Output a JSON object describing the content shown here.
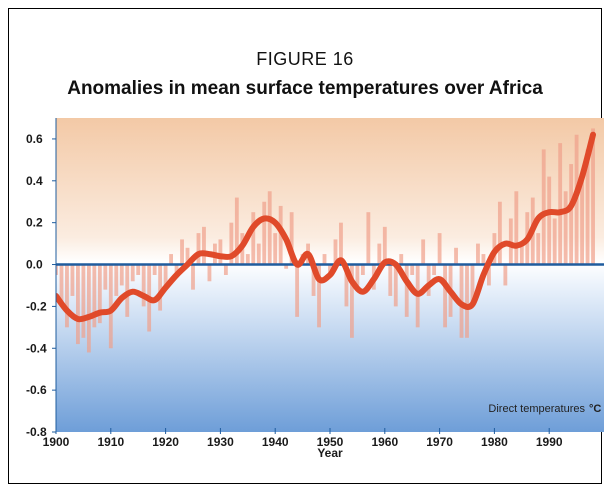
{
  "figure_label": "FIGURE 16",
  "chart_data": {
    "type": "line",
    "title": "Anomalies in mean surface temperatures over Africa",
    "xlabel": "Year",
    "ylabel": "",
    "xlim": [
      1900,
      2000
    ],
    "ylim": [
      -0.8,
      0.7
    ],
    "x_ticks": [
      "1900",
      "1910",
      "1920",
      "1930",
      "1940",
      "1950",
      "1960",
      "1970",
      "1980",
      "1990"
    ],
    "y_ticks": [
      "0.6",
      "0.4",
      "0.2",
      "0.0",
      "-0.2",
      "-0.4",
      "-0.6",
      "-0.8"
    ],
    "reference_line": 0.0,
    "annotation": "Direct temperatures",
    "unit": "°C",
    "grid": false,
    "colors": {
      "smoothed": "#e04a2a",
      "annual": "#f0a08a",
      "zero_line": "#1f5c9e",
      "bg_top": "#f3c9a6",
      "bg_bottom": "#6e9ed8"
    },
    "series": [
      {
        "style": "smoothed-curve",
        "x": [
          1900,
          1902,
          1904,
          1906,
          1908,
          1910,
          1912,
          1914,
          1916,
          1918,
          1920,
          1922,
          1924,
          1926,
          1928,
          1930,
          1932,
          1934,
          1936,
          1938,
          1940,
          1942,
          1944,
          1946,
          1948,
          1950,
          1952,
          1954,
          1956,
          1958,
          1960,
          1962,
          1964,
          1966,
          1968,
          1970,
          1972,
          1974,
          1976,
          1978,
          1980,
          1982,
          1984,
          1986,
          1988,
          1990,
          1992,
          1994,
          1996,
          1998
        ],
        "y": [
          -0.15,
          -0.22,
          -0.26,
          -0.25,
          -0.23,
          -0.22,
          -0.16,
          -0.13,
          -0.15,
          -0.17,
          -0.11,
          -0.05,
          0.0,
          0.05,
          0.05,
          0.04,
          0.04,
          0.09,
          0.18,
          0.22,
          0.2,
          0.12,
          0.0,
          0.05,
          -0.07,
          -0.05,
          0.02,
          -0.08,
          -0.13,
          -0.07,
          0.01,
          0.0,
          -0.08,
          -0.14,
          -0.1,
          -0.07,
          -0.13,
          -0.19,
          -0.19,
          -0.05,
          0.06,
          0.1,
          0.09,
          0.12,
          0.22,
          0.25,
          0.25,
          0.28,
          0.42,
          0.62
        ]
      },
      {
        "style": "annual-bars",
        "x": [
          1900,
          1901,
          1902,
          1903,
          1904,
          1905,
          1906,
          1907,
          1908,
          1909,
          1910,
          1911,
          1912,
          1913,
          1914,
          1915,
          1916,
          1917,
          1918,
          1919,
          1920,
          1921,
          1922,
          1923,
          1924,
          1925,
          1926,
          1927,
          1928,
          1929,
          1930,
          1931,
          1932,
          1933,
          1934,
          1935,
          1936,
          1937,
          1938,
          1939,
          1940,
          1941,
          1942,
          1943,
          1944,
          1945,
          1946,
          1947,
          1948,
          1949,
          1950,
          1951,
          1952,
          1953,
          1954,
          1955,
          1956,
          1957,
          1958,
          1959,
          1960,
          1961,
          1962,
          1963,
          1964,
          1965,
          1966,
          1967,
          1968,
          1969,
          1970,
          1971,
          1972,
          1973,
          1974,
          1975,
          1976,
          1977,
          1978,
          1979,
          1980,
          1981,
          1982,
          1983,
          1984,
          1985,
          1986,
          1987,
          1988,
          1989,
          1990,
          1991,
          1992,
          1993,
          1994,
          1995,
          1996,
          1997,
          1998
        ],
        "y": [
          -0.05,
          -0.2,
          -0.3,
          -0.15,
          -0.38,
          -0.35,
          -0.42,
          -0.3,
          -0.28,
          -0.12,
          -0.4,
          -0.15,
          -0.1,
          -0.25,
          -0.08,
          -0.05,
          -0.2,
          -0.32,
          -0.05,
          -0.22,
          -0.1,
          0.05,
          -0.05,
          0.12,
          0.08,
          -0.12,
          0.15,
          0.18,
          -0.08,
          0.1,
          0.12,
          -0.05,
          0.2,
          0.32,
          0.15,
          0.05,
          0.25,
          0.1,
          0.3,
          0.35,
          0.15,
          0.28,
          -0.02,
          0.25,
          -0.25,
          0.05,
          0.1,
          -0.15,
          -0.3,
          0.05,
          -0.05,
          0.12,
          0.2,
          -0.2,
          -0.35,
          -0.1,
          -0.05,
          0.25,
          -0.12,
          0.1,
          0.18,
          -0.15,
          -0.2,
          0.05,
          -0.25,
          -0.05,
          -0.3,
          0.12,
          -0.15,
          -0.05,
          0.15,
          -0.3,
          -0.25,
          0.08,
          -0.35,
          -0.35,
          -0.2,
          0.1,
          0.05,
          -0.1,
          0.15,
          0.3,
          -0.1,
          0.22,
          0.35,
          0.1,
          0.25,
          0.32,
          0.15,
          0.55,
          0.42,
          0.22,
          0.58,
          0.35,
          0.48,
          0.62,
          0.4,
          0.55,
          0.65
        ]
      }
    ]
  }
}
